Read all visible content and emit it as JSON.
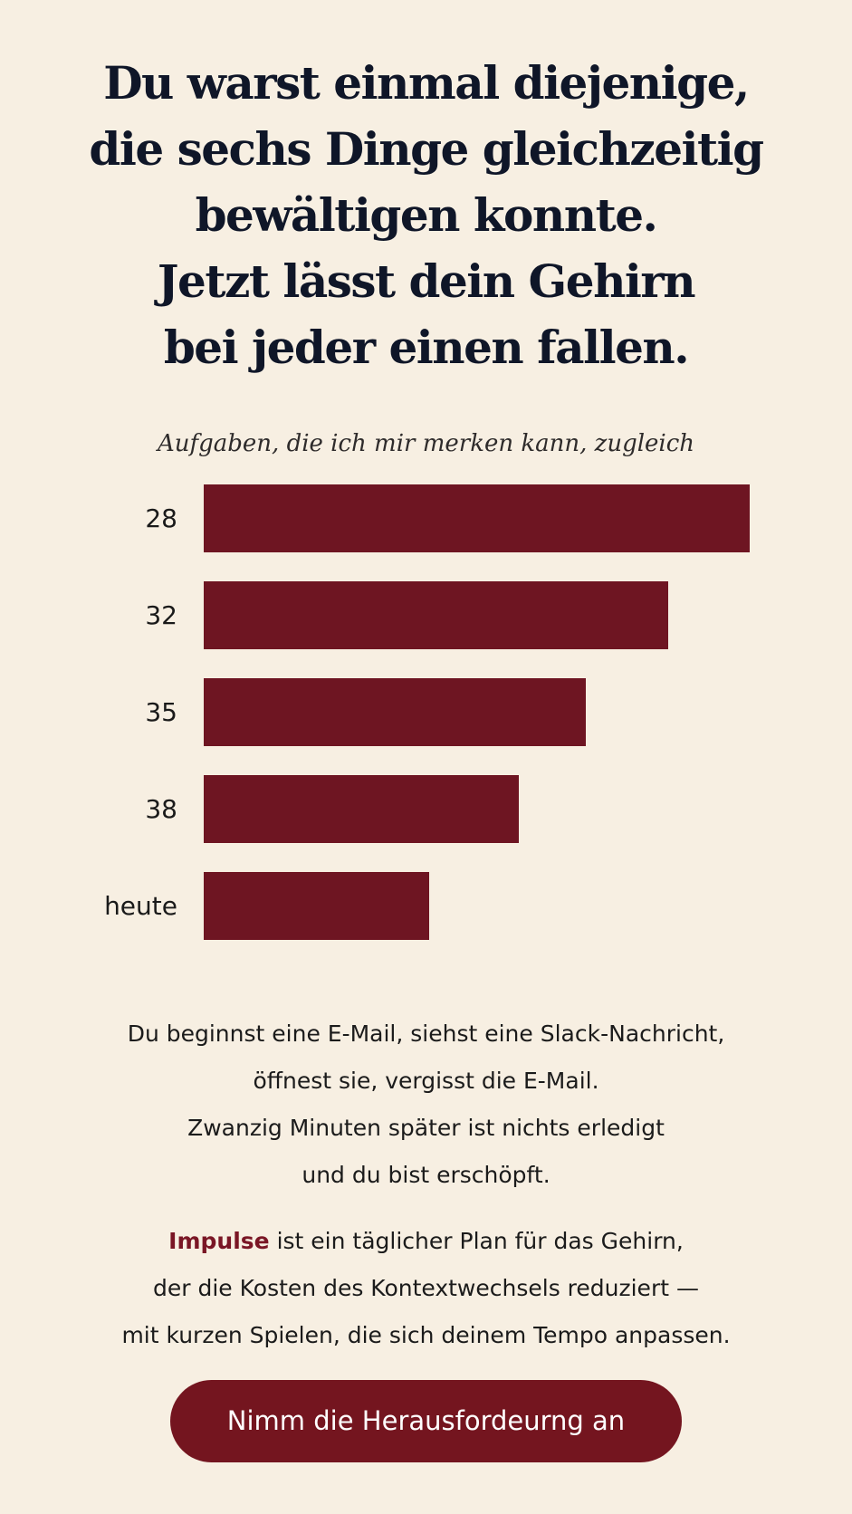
{
  "headline": {
    "lines": [
      "Du warst einmal diejenige,",
      "die sechs Dinge gleichzeitig",
      "bewältigen konnte.",
      "Jetzt lässt dein Gehirn",
      "bei jeder einen fallen."
    ]
  },
  "chart_data": {
    "type": "bar",
    "title": "Aufgaben, die ich mir merken kann, zugleich",
    "categories": [
      "28",
      "32",
      "35",
      "38",
      "heute"
    ],
    "values": [
      6,
      5.1,
      4.2,
      3.46,
      2.48
    ],
    "xlim": [
      0,
      6
    ],
    "bar_color": "#6e1522",
    "grid": false,
    "legend": "none"
  },
  "copy": {
    "paragraph1": [
      "Du beginnst eine E-Mail, siehst eine Slack-Nachricht,",
      "öffnest sie, vergisst die E-Mail.",
      "Zwanzig Minuten später ist nichts erledigt",
      "und du bist erschöpft."
    ],
    "paragraph2": {
      "brand": "Impulse",
      "line1_rest": " ist ein täglicher Plan für das Gehirn,",
      "line2": "der die Kosten des Kontextwechsels reduziert —",
      "line3": "mit kurzen Spielen, die sich deinem Tempo anpassen."
    }
  },
  "cta": {
    "label": "Nimm die Herausfordeurng an"
  },
  "colors": {
    "background": "#f7efe2",
    "accent": "#6e1522",
    "headline": "#0f1628"
  }
}
